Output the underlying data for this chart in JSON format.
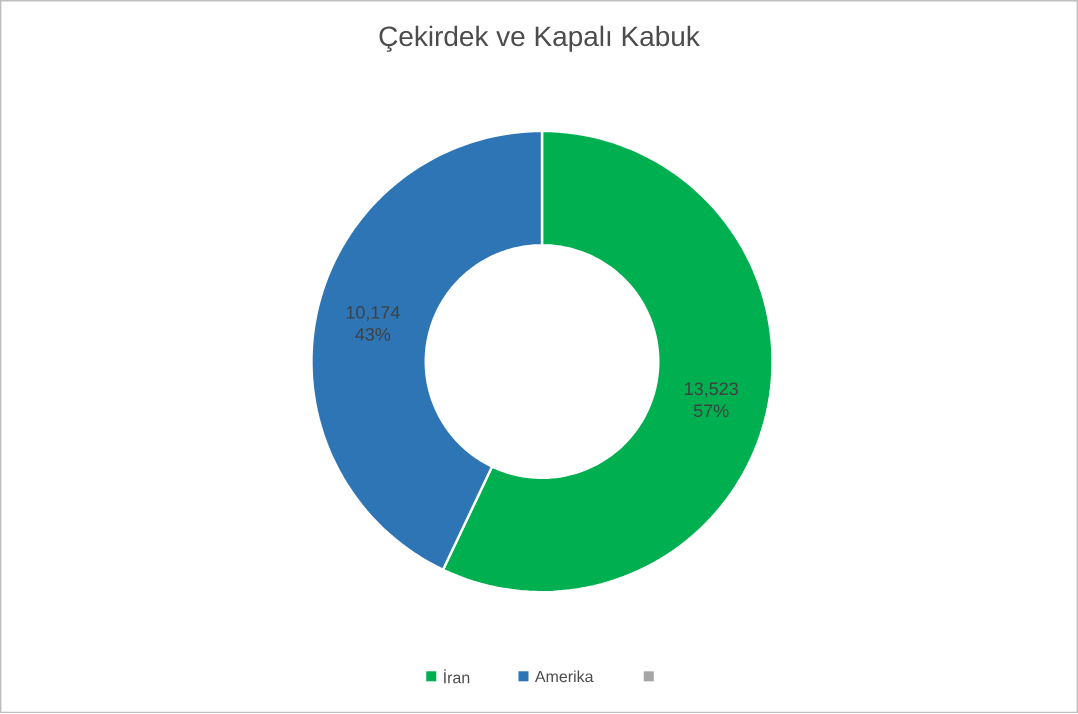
{
  "chart_data": {
    "type": "donut",
    "title": "Çekirdek ve Kapalı Kabuk",
    "categories": [
      "İran",
      "Amerika",
      null
    ],
    "values": [
      13523,
      10174,
      0
    ],
    "colors": [
      "#00b050",
      "#2e75b6",
      "#a5a5a5"
    ],
    "value_labels": [
      "13,523 57%",
      "10,174 43%",
      null
    ],
    "legend": "bottom"
  }
}
